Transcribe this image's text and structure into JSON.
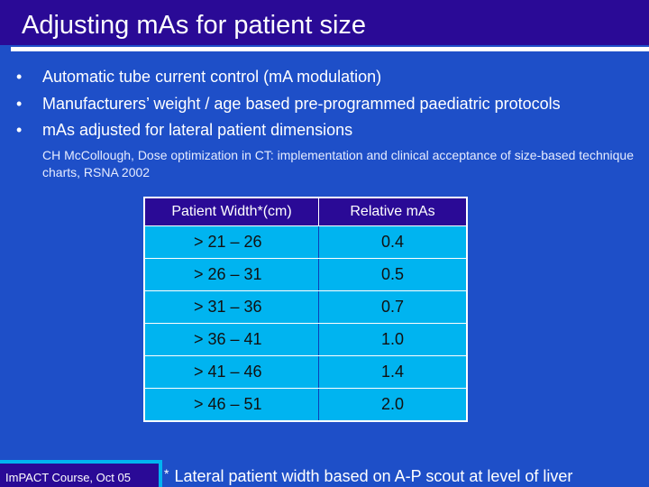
{
  "slide": {
    "title": "Adjusting mAs for patient size",
    "bullets": [
      {
        "marker": "•",
        "text": "Automatic tube current control (mA modulation)"
      },
      {
        "marker": "•",
        "text": "Manufacturers’ weight / age based pre-programmed paediatric protocols"
      },
      {
        "marker": "•",
        "text": "mAs adjusted for lateral patient dimensions"
      }
    ],
    "reference": "CH McCollough, Dose optimization in CT: implementation and clinical  acceptance of size-based technique charts, RSNA 2002",
    "table": {
      "headers": [
        "Patient Width*(cm)",
        "Relative mAs"
      ],
      "rows": [
        [
          "> 21 – 26",
          "0.4"
        ],
        [
          "> 26 – 31",
          "0.5"
        ],
        [
          "> 31 – 36",
          "0.7"
        ],
        [
          "> 36 – 41",
          "1.0"
        ],
        [
          "> 41 – 46",
          "1.4"
        ],
        [
          "> 46 – 51",
          "2.0"
        ]
      ]
    },
    "footer": "ImPACT Course, Oct 05",
    "footnote": {
      "marker": "*",
      "text": "Lateral patient width based on A-P scout at level of liver"
    }
  },
  "colors": {
    "background": "#1e4fc8",
    "title_bar": "#2a0a96",
    "table_header": "#2a0a96",
    "table_cell": "#00b4f0",
    "accent": "#00b4f0"
  }
}
